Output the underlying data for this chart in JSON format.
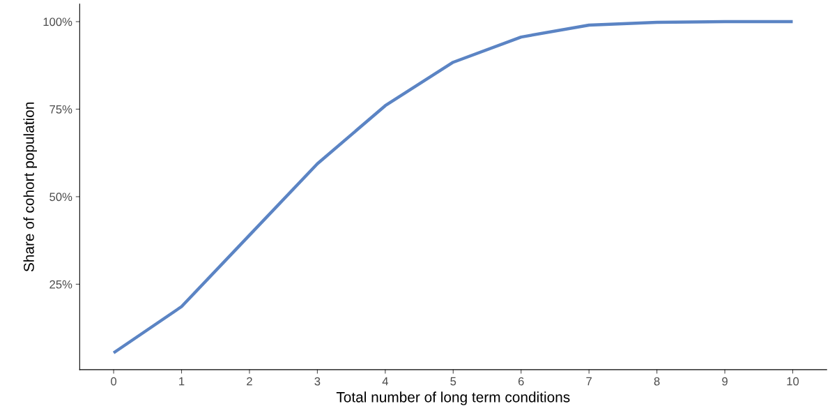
{
  "chart_data": {
    "type": "line",
    "xlabel": "Total number of long term conditions",
    "ylabel": "Share of cohort population",
    "x": [
      0,
      1,
      2,
      3,
      4,
      5,
      6,
      7,
      8,
      9,
      10
    ],
    "series": [
      {
        "color": "#5b84c4",
        "values": [
          5.4,
          18.6,
          39,
          59.4,
          76,
          88.4,
          95.6,
          99,
          99.8,
          100,
          100
        ]
      }
    ],
    "xlim": [
      -0.5,
      10.5
    ],
    "xticks": [
      0,
      1,
      2,
      3,
      4,
      5,
      6,
      7,
      8,
      9,
      10
    ],
    "ylim": [
      0.6,
      105
    ],
    "yticks": [
      {
        "value": 25,
        "label": "25%"
      },
      {
        "value": 50,
        "label": "50%"
      },
      {
        "value": 75,
        "label": "75%"
      },
      {
        "value": 100,
        "label": "100%"
      }
    ],
    "grid": false,
    "legend": false,
    "marker": "none",
    "line_style": "solid"
  }
}
